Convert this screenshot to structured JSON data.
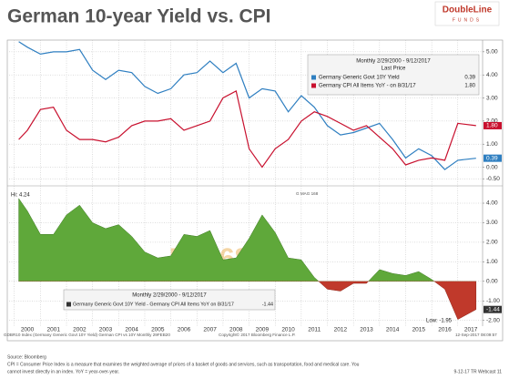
{
  "chart_data": [
    {
      "type": "line",
      "title": "German 10-year Yield vs. CPI",
      "logo": {
        "name": "DoubleLine",
        "sub": "FUNDS"
      },
      "legend_title": "Monthly 2/29/2000 - 9/12/2017",
      "legend_subtitle": "Last Price",
      "xlim": [
        1999.8,
        2017.95
      ],
      "ylim": [
        -0.65,
        5.35
      ],
      "yticks": [
        {
          "value": 5,
          "label": "5.00"
        },
        {
          "value": 4,
          "label": "4.00"
        },
        {
          "value": 3,
          "label": "3.00"
        },
        {
          "value": 2,
          "label": "2.00"
        },
        {
          "value": 1,
          "label": "1.00"
        },
        {
          "value": 0,
          "label": "0.00"
        },
        {
          "value": -0.5,
          "label": "-0.50"
        }
      ],
      "series": [
        {
          "name": "Germany Generic Govt 10Y Yield",
          "color": "#2f7fc1",
          "last_price": {
            "value": 0.39,
            "label": "0.39"
          },
          "x": [
            2000.17,
            2000.5,
            2001,
            2001.5,
            2002,
            2002.5,
            2003,
            2003.5,
            2004,
            2004.5,
            2005,
            2005.5,
            2006,
            2006.5,
            2007,
            2007.5,
            2008,
            2008.5,
            2009,
            2009.5,
            2010,
            2010.5,
            2011,
            2011.5,
            2012,
            2012.5,
            2013,
            2013.5,
            2014,
            2014.5,
            2015,
            2015.5,
            2016,
            2016.5,
            2017,
            2017.7
          ],
          "values": [
            5.44,
            5.2,
            4.9,
            5.0,
            5.0,
            5.1,
            4.2,
            3.8,
            4.2,
            4.1,
            3.5,
            3.2,
            3.4,
            4.0,
            4.1,
            4.6,
            4.1,
            4.5,
            3.0,
            3.4,
            3.3,
            2.4,
            3.1,
            2.6,
            1.8,
            1.4,
            1.5,
            1.7,
            1.9,
            1.2,
            0.4,
            0.8,
            0.5,
            -0.1,
            0.3,
            0.39
          ]
        },
        {
          "name": "Germany CPI All Items YoY - on 8/31/17",
          "color": "#c8102e",
          "last_price": {
            "value": 1.8,
            "label": "1.80"
          },
          "x": [
            2000.17,
            2000.5,
            2001,
            2001.5,
            2002,
            2002.5,
            2003,
            2003.5,
            2004,
            2004.5,
            2005,
            2005.5,
            2006,
            2006.5,
            2007,
            2007.5,
            2008,
            2008.5,
            2009,
            2009.5,
            2010,
            2010.5,
            2011,
            2011.5,
            2012,
            2012.5,
            2013,
            2013.5,
            2014,
            2014.5,
            2015,
            2015.5,
            2016,
            2016.5,
            2017,
            2017.7
          ],
          "values": [
            1.2,
            1.6,
            2.5,
            2.6,
            1.6,
            1.2,
            1.2,
            1.1,
            1.3,
            1.8,
            2.0,
            2.0,
            2.1,
            1.6,
            1.8,
            2.0,
            3.0,
            3.3,
            0.8,
            0.0,
            0.8,
            1.2,
            2.0,
            2.4,
            2.2,
            1.9,
            1.6,
            1.8,
            1.3,
            0.8,
            0.1,
            0.3,
            0.4,
            0.3,
            1.9,
            1.8
          ]
        }
      ]
    },
    {
      "type": "area",
      "legend_title": "Monthly 2/29/2000 - 9/12/2017",
      "hi_label": "Hi: 4.24",
      "low_label": "Low: -1.95",
      "annotation": "G MAG 168",
      "watermark": "FX168",
      "xlim": [
        1999.8,
        2017.95
      ],
      "xticks": [
        2000,
        2001,
        2002,
        2003,
        2004,
        2005,
        2006,
        2007,
        2008,
        2009,
        2010,
        2011,
        2012,
        2013,
        2014,
        2015,
        2016,
        2017
      ],
      "ylim": [
        -2.2,
        4.7
      ],
      "yticks": [
        {
          "value": 4,
          "label": "4.00"
        },
        {
          "value": 3,
          "label": "3.00"
        },
        {
          "value": 2,
          "label": "2.00"
        },
        {
          "value": 1,
          "label": "1.00"
        },
        {
          "value": 0,
          "label": "0.00"
        },
        {
          "value": -1,
          "label": "-1.00"
        },
        {
          "value": -2,
          "label": "-2.00"
        }
      ],
      "series": [
        {
          "name": "Germany Generic Govt 10Y Yield - Germany CPI All Items YoY on 8/31/17",
          "color": "#5fa83a",
          "negative_color": "#c0392b",
          "last_price": {
            "value": -1.44,
            "label": "-1.44"
          },
          "x": [
            2000.17,
            2000.5,
            2001,
            2001.5,
            2002,
            2002.5,
            2003,
            2003.5,
            2004,
            2004.5,
            2005,
            2005.5,
            2006,
            2006.5,
            2007,
            2007.5,
            2008,
            2008.5,
            2009,
            2009.5,
            2010,
            2010.5,
            2011,
            2011.5,
            2012,
            2012.5,
            2013,
            2013.5,
            2014,
            2014.5,
            2015,
            2015.5,
            2016,
            2016.5,
            2017,
            2017.7
          ],
          "values": [
            4.24,
            3.6,
            2.4,
            2.4,
            3.4,
            3.9,
            3.0,
            2.7,
            2.9,
            2.3,
            1.5,
            1.2,
            1.3,
            2.4,
            2.3,
            2.6,
            1.1,
            1.2,
            2.2,
            3.4,
            2.5,
            1.2,
            1.1,
            0.2,
            -0.4,
            -0.5,
            -0.1,
            -0.1,
            0.6,
            0.4,
            0.3,
            0.5,
            0.1,
            -0.4,
            -1.95,
            -1.44
          ]
        }
      ],
      "credits": [
        "GDBR10 Index (Germany Generic Govt 10Y Yield) German CPI vs 10Y Monthly 29FEB20",
        "Copyright© 2017 Bloomberg Finance L.P.",
        "12-Sep-2017 08:09:57"
      ],
      "footer": [
        "Source: Bloomberg",
        "CPI = Consumer Price Index is a measure that examines the weighted average of prices of a basket of goods and services, such as transportation, food and medical care. You",
        "cannot invest directly in an index. YoY = year-over-year.",
        "9-12-17 TR Webcast 11"
      ]
    }
  ]
}
